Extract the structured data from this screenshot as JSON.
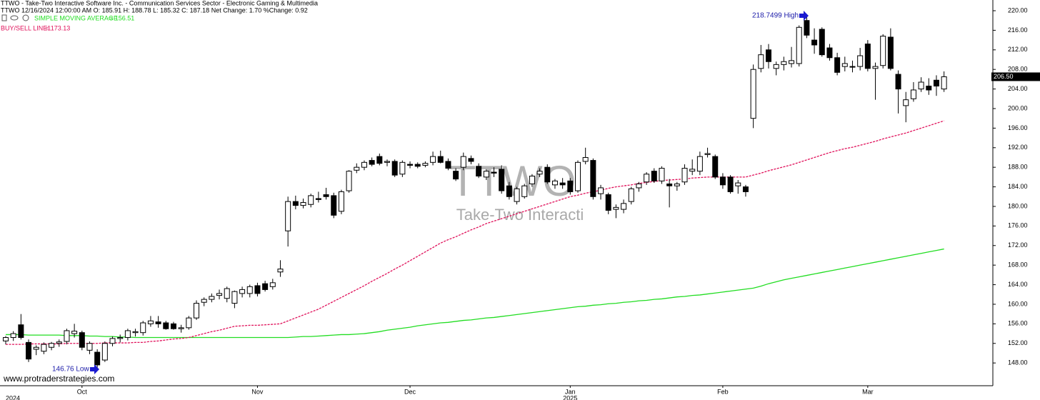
{
  "chart_data": {
    "type": "candlestick",
    "title": "TTWO - Take-Two Interactive Software Inc. - Communication Services Sector - Electronic Gaming & Multimedia",
    "subtitle": "TTWO 12/16/2024 12:00:00 AM O: 185.91 H: 188.78 L: 185.32 C: 187.18 Net Change: 1.70  %Change: 0.92",
    "watermark": "TTWO",
    "watermark_subtitle": "Take-Two Interacti",
    "source": "www.protraderstrategies.com",
    "high_annotation": "218.7499 High",
    "low_annotation": "146.76 Low",
    "last_price_label": "206.50",
    "categories": [
      null,
      null,
      null,
      null,
      null,
      null,
      null,
      null,
      null,
      null,
      "Oct",
      null,
      null,
      null,
      null,
      null,
      null,
      null,
      null,
      null,
      null,
      null,
      null,
      null,
      null,
      null,
      null,
      null,
      null,
      null,
      null,
      null,
      null,
      "Nov",
      null,
      null,
      null,
      null,
      null,
      null,
      null,
      null,
      null,
      null,
      null,
      null,
      null,
      null,
      null,
      null,
      null,
      null,
      null,
      "Dec",
      null,
      null,
      null,
      null,
      null,
      null,
      null,
      null,
      null,
      null,
      null,
      null,
      null,
      null,
      null,
      null,
      null,
      null,
      null,
      null,
      "Jan",
      null,
      null,
      null,
      null,
      null,
      null,
      null,
      null,
      null,
      null,
      null,
      null,
      null,
      null,
      null,
      null,
      null,
      null,
      null,
      "Feb",
      null,
      null,
      null,
      null,
      null,
      null,
      null,
      null,
      null,
      null,
      null,
      null,
      null,
      null,
      null,
      null,
      null,
      null,
      "Mar",
      null,
      null,
      null,
      null,
      null,
      null,
      null,
      null,
      null,
      null
    ],
    "year_labels": [
      "2024",
      null,
      null,
      null,
      null,
      null,
      null,
      null,
      null,
      null,
      null,
      null,
      null,
      null,
      null,
      null,
      null,
      null,
      null,
      null,
      null,
      null,
      null,
      null,
      null,
      null,
      null,
      null,
      null,
      null,
      null,
      null,
      null,
      null,
      null,
      null,
      null,
      null,
      null,
      null,
      null,
      null,
      null,
      null,
      null,
      null,
      null,
      null,
      null,
      null,
      null,
      null,
      null,
      null,
      null,
      null,
      null,
      null,
      null,
      null,
      null,
      null,
      null,
      null,
      null,
      null,
      null,
      null,
      null,
      null,
      null,
      null,
      null,
      null,
      "2025",
      null,
      null,
      null,
      null,
      null,
      null,
      null,
      null,
      null,
      null,
      null,
      null,
      null,
      null,
      null,
      null,
      null,
      null,
      null,
      null,
      null,
      null,
      null,
      null,
      null,
      null,
      null,
      null,
      null,
      null,
      null,
      null,
      null,
      null,
      null,
      null,
      null,
      null,
      null,
      null,
      null,
      null,
      null,
      null,
      null,
      null,
      null,
      null,
      null
    ],
    "ohlc": [
      [
        152.5,
        153.5,
        151.8,
        153.2
      ],
      [
        153.2,
        154.5,
        152.5,
        154.0
      ],
      [
        155.8,
        158.0,
        152.8,
        153.2
      ],
      [
        152.2,
        152.8,
        148.2,
        148.8
      ],
      [
        150.8,
        151.6,
        149.6,
        151.2
      ],
      [
        150.4,
        152.2,
        149.8,
        151.8
      ],
      [
        151.2,
        152.3,
        150.6,
        152.0
      ],
      [
        152.0,
        152.8,
        151.3,
        152.3
      ],
      [
        152.4,
        155.0,
        151.8,
        154.6
      ],
      [
        154.0,
        156.0,
        153.2,
        154.5
      ],
      [
        154.2,
        154.6,
        150.6,
        151.2
      ],
      [
        150.6,
        152.4,
        149.8,
        152.0
      ],
      [
        150.2,
        150.8,
        146.76,
        147.6
      ],
      [
        148.6,
        152.4,
        148.2,
        152.0
      ],
      [
        152.0,
        153.4,
        151.4,
        153.0
      ],
      [
        153.0,
        153.8,
        152.2,
        153.2
      ],
      [
        153.2,
        155.0,
        152.6,
        154.6
      ],
      [
        154.2,
        155.0,
        153.4,
        154.4
      ],
      [
        154.2,
        156.6,
        153.6,
        156.2
      ],
      [
        156.0,
        157.6,
        155.4,
        156.6
      ],
      [
        156.4,
        157.6,
        155.2,
        156.0
      ],
      [
        156.2,
        156.6,
        154.8,
        155.0
      ],
      [
        156.0,
        156.4,
        154.8,
        155.0
      ],
      [
        155.0,
        155.8,
        154.2,
        155.2
      ],
      [
        155.2,
        157.6,
        154.8,
        157.2
      ],
      [
        157.2,
        160.8,
        156.8,
        160.2
      ],
      [
        160.4,
        161.4,
        159.6,
        161.0
      ],
      [
        161.0,
        162.2,
        160.4,
        161.6
      ],
      [
        161.8,
        163.0,
        161.0,
        162.2
      ],
      [
        161.2,
        163.6,
        160.4,
        163.2
      ],
      [
        160.2,
        162.8,
        159.2,
        162.6
      ],
      [
        162.2,
        163.6,
        161.4,
        163.0
      ],
      [
        162.2,
        164.0,
        161.4,
        163.6
      ],
      [
        163.8,
        164.4,
        161.6,
        162.2
      ],
      [
        164.2,
        164.8,
        162.6,
        163.0
      ],
      [
        163.6,
        165.2,
        163.0,
        164.4
      ],
      [
        166.6,
        169.0,
        165.6,
        167.2
      ],
      [
        175.0,
        182.0,
        171.8,
        181.0
      ],
      [
        181.0,
        182.2,
        179.4,
        180.2
      ],
      [
        180.2,
        181.6,
        179.6,
        180.8
      ],
      [
        180.4,
        182.6,
        179.8,
        182.2
      ],
      [
        181.6,
        183.0,
        180.8,
        181.4
      ],
      [
        182.4,
        183.8,
        181.4,
        182.0
      ],
      [
        182.2,
        182.8,
        177.6,
        178.2
      ],
      [
        179.0,
        183.4,
        178.4,
        183.0
      ],
      [
        183.2,
        187.4,
        182.8,
        187.2
      ],
      [
        187.4,
        188.8,
        186.8,
        188.0
      ],
      [
        188.0,
        189.4,
        187.4,
        189.0
      ],
      [
        189.4,
        190.0,
        188.2,
        188.6
      ],
      [
        190.2,
        190.8,
        188.4,
        188.8
      ],
      [
        189.0,
        189.6,
        188.2,
        189.2
      ],
      [
        189.2,
        189.6,
        186.0,
        186.4
      ],
      [
        186.6,
        189.4,
        186.0,
        189.0
      ],
      [
        188.6,
        189.2,
        187.8,
        188.4
      ],
      [
        188.6,
        189.0,
        187.8,
        188.2
      ],
      [
        188.4,
        189.2,
        188.0,
        188.8
      ],
      [
        189.0,
        191.2,
        188.4,
        190.2
      ],
      [
        190.2,
        191.4,
        188.8,
        189.0
      ],
      [
        189.2,
        189.8,
        187.4,
        187.8
      ],
      [
        187.2,
        187.8,
        185.2,
        185.6
      ],
      [
        188.0,
        191.0,
        187.4,
        190.2
      ],
      [
        189.8,
        190.4,
        188.6,
        189.2
      ],
      [
        188.2,
        188.8,
        185.8,
        186.2
      ],
      [
        186.0,
        187.6,
        185.4,
        187.2
      ],
      [
        187.0,
        188.0,
        186.0,
        186.8
      ],
      [
        187.6,
        188.4,
        182.6,
        183.2
      ],
      [
        184.2,
        185.0,
        181.4,
        182.0
      ],
      [
        181.0,
        184.0,
        180.4,
        183.6
      ],
      [
        182.0,
        184.6,
        181.6,
        184.2
      ],
      [
        184.6,
        186.6,
        184.0,
        186.2
      ],
      [
        186.6,
        187.8,
        186.0,
        187.2
      ],
      [
        188.0,
        188.6,
        184.6,
        185.0
      ],
      [
        184.4,
        185.6,
        183.6,
        185.2
      ],
      [
        184.8,
        185.8,
        183.6,
        184.4
      ],
      [
        185.2,
        185.8,
        182.4,
        183.0
      ],
      [
        183.2,
        189.4,
        182.8,
        189.0
      ],
      [
        189.2,
        192.0,
        188.6,
        190.0
      ],
      [
        189.4,
        189.8,
        181.4,
        182.0
      ],
      [
        182.6,
        184.4,
        181.4,
        183.8
      ],
      [
        182.4,
        182.8,
        178.4,
        179.2
      ],
      [
        179.4,
        180.4,
        177.6,
        179.8
      ],
      [
        179.4,
        181.4,
        178.6,
        180.6
      ],
      [
        181.0,
        184.0,
        180.4,
        183.6
      ],
      [
        183.8,
        185.0,
        183.0,
        184.6
      ],
      [
        185.0,
        187.0,
        184.4,
        186.6
      ],
      [
        187.2,
        187.8,
        184.8,
        185.2
      ],
      [
        185.2,
        188.2,
        184.6,
        187.8
      ],
      [
        184.6,
        185.6,
        179.8,
        184.2
      ],
      [
        184.2,
        185.0,
        183.2,
        184.6
      ],
      [
        185.0,
        188.6,
        184.4,
        187.8
      ],
      [
        187.2,
        189.6,
        186.4,
        187.6
      ],
      [
        187.2,
        191.2,
        186.4,
        190.2
      ],
      [
        190.6,
        192.0,
        190.0,
        190.8
      ],
      [
        190.2,
        190.6,
        185.6,
        186.0
      ],
      [
        186.0,
        186.8,
        183.6,
        184.4
      ],
      [
        186.0,
        186.4,
        182.6,
        183.0
      ],
      [
        184.2,
        185.4,
        182.6,
        184.8
      ],
      [
        184.0,
        184.4,
        182.0,
        183.0
      ],
      [
        198.0,
        209.0,
        196.0,
        208.0
      ],
      [
        208.2,
        213.0,
        207.4,
        211.0
      ],
      [
        212.0,
        213.2,
        208.2,
        209.6
      ],
      [
        208.2,
        209.6,
        206.8,
        209.0
      ],
      [
        209.0,
        210.6,
        207.8,
        209.6
      ],
      [
        209.2,
        212.6,
        208.4,
        209.8
      ],
      [
        209.2,
        217.0,
        208.6,
        216.6
      ],
      [
        218.0,
        218.7499,
        214.4,
        215.0
      ],
      [
        214.0,
        216.4,
        211.2,
        213.0
      ],
      [
        216.2,
        216.6,
        210.6,
        211.0
      ],
      [
        212.4,
        213.2,
        209.8,
        210.4
      ],
      [
        210.4,
        211.4,
        206.8,
        207.4
      ],
      [
        208.6,
        210.6,
        207.6,
        209.2
      ],
      [
        208.6,
        209.8,
        207.4,
        208.6
      ],
      [
        208.6,
        212.4,
        207.8,
        210.8
      ],
      [
        213.2,
        214.0,
        207.6,
        208.2
      ],
      [
        208.2,
        209.4,
        201.8,
        208.6
      ],
      [
        208.8,
        215.2,
        208.2,
        214.8
      ],
      [
        214.6,
        216.4,
        207.8,
        208.2
      ],
      [
        207.0,
        207.8,
        199.0,
        204.0
      ],
      [
        200.6,
        203.4,
        197.2,
        201.8
      ],
      [
        202.0,
        205.4,
        201.4,
        203.8
      ],
      [
        204.0,
        206.4,
        203.4,
        205.4
      ],
      [
        204.6,
        206.2,
        202.8,
        203.8
      ],
      [
        205.8,
        206.8,
        202.6,
        204.6
      ],
      [
        204.0,
        207.6,
        203.4,
        206.5
      ]
    ],
    "series": [
      {
        "name": "SIMPLE MOVING AVERAGE",
        "legend_label": "= 156.51",
        "color": "#22dd22",
        "dashed": false,
        "values": [
          153.8,
          153.8,
          153.8,
          153.7,
          153.7,
          153.7,
          153.7,
          153.7,
          153.6,
          153.6,
          153.6,
          153.5,
          153.5,
          153.4,
          153.4,
          153.3,
          153.3,
          153.2,
          153.2,
          153.2,
          153.2,
          153.2,
          153.2,
          153.2,
          153.2,
          153.2,
          153.2,
          153.2,
          153.2,
          153.2,
          153.2,
          153.2,
          153.2,
          153.2,
          153.2,
          153.2,
          153.2,
          153.2,
          153.3,
          153.4,
          153.4,
          153.5,
          153.6,
          153.7,
          153.8,
          153.8,
          153.9,
          154.0,
          154.2,
          154.4,
          154.7,
          154.9,
          155.1,
          155.3,
          155.6,
          155.8,
          156.0,
          156.2,
          156.3,
          156.5,
          156.7,
          156.8,
          157.0,
          157.2,
          157.3,
          157.5,
          157.7,
          157.9,
          158.1,
          158.3,
          158.5,
          158.7,
          158.9,
          159.1,
          159.3,
          159.5,
          159.6,
          159.8,
          159.9,
          160.1,
          160.2,
          160.4,
          160.5,
          160.7,
          160.8,
          161.0,
          161.1,
          161.3,
          161.5,
          161.6,
          161.8,
          161.9,
          162.1,
          162.3,
          162.5,
          162.7,
          162.9,
          163.1,
          163.3,
          163.7,
          164.2,
          164.6,
          165.0,
          165.3,
          165.6,
          165.9,
          166.2,
          166.5,
          166.8,
          167.1,
          167.4,
          167.7,
          168.0,
          168.3,
          168.6,
          168.9,
          169.2,
          169.5,
          169.8,
          170.1,
          170.4,
          170.7,
          171.0,
          171.3
        ]
      },
      {
        "name": "BUY/SELL LINE1",
        "legend_label": "= 173.13",
        "color": "#e0105a",
        "dashed": true,
        "values": [
          151.8,
          151.8,
          151.8,
          151.9,
          151.9,
          151.9,
          151.9,
          151.9,
          152.0,
          152.0,
          152.0,
          152.0,
          152.0,
          152.1,
          152.1,
          152.1,
          152.1,
          152.2,
          152.2,
          152.4,
          152.5,
          152.7,
          152.9,
          153.0,
          153.2,
          153.6,
          154.0,
          154.4,
          154.7,
          155.1,
          155.5,
          155.6,
          155.7,
          155.7,
          155.8,
          155.9,
          156.0,
          156.6,
          157.2,
          157.8,
          158.4,
          159.0,
          159.8,
          160.6,
          161.4,
          162.2,
          163.0,
          163.8,
          164.7,
          165.5,
          166.3,
          167.2,
          168.0,
          168.9,
          169.8,
          170.7,
          171.6,
          172.5,
          173.2,
          173.8,
          174.5,
          175.2,
          175.8,
          176.5,
          177.0,
          177.5,
          178.0,
          178.5,
          179.0,
          179.5,
          180.0,
          180.5,
          181.0,
          181.5,
          182.0,
          182.3,
          182.7,
          183.0,
          183.3,
          183.7,
          184.0,
          184.2,
          184.4,
          184.7,
          184.9,
          185.1,
          185.3,
          185.4,
          185.5,
          185.6,
          185.8,
          185.9,
          186.0,
          186.0,
          186.0,
          186.0,
          186.0,
          186.0,
          186.4,
          186.8,
          187.3,
          187.7,
          188.1,
          188.5,
          189.0,
          189.5,
          190.0,
          190.5,
          191.0,
          191.4,
          191.8,
          192.1,
          192.5,
          192.9,
          193.3,
          193.8,
          194.2,
          194.6,
          195.0,
          195.5,
          196.0,
          196.5,
          197.0,
          197.5
        ]
      }
    ],
    "ylim": [
      143.35,
      222.19
    ],
    "yticks": [
      {
        "value": 148,
        "label": "148.00"
      },
      {
        "value": 152,
        "label": "152.00"
      },
      {
        "value": 156,
        "label": "156.00"
      },
      {
        "value": 160,
        "label": "160.00"
      },
      {
        "value": 164,
        "label": "164.00"
      },
      {
        "value": 168,
        "label": "168.00"
      },
      {
        "value": 172,
        "label": "172.00"
      },
      {
        "value": 176,
        "label": "176.00"
      },
      {
        "value": 180,
        "label": "180.00"
      },
      {
        "value": 184,
        "label": "184.00"
      },
      {
        "value": 188,
        "label": "188.00"
      },
      {
        "value": 192,
        "label": "192.00"
      },
      {
        "value": 196,
        "label": "196.00"
      },
      {
        "value": 200,
        "label": "200.00"
      },
      {
        "value": 204,
        "label": "204.00"
      },
      {
        "value": 208,
        "label": "208.00"
      },
      {
        "value": 212,
        "label": "212.00"
      },
      {
        "value": 216,
        "label": "216.00"
      },
      {
        "value": 220,
        "label": "220.00"
      }
    ],
    "up_color": "#ffffff",
    "down_color": "#000000",
    "grid": false
  }
}
